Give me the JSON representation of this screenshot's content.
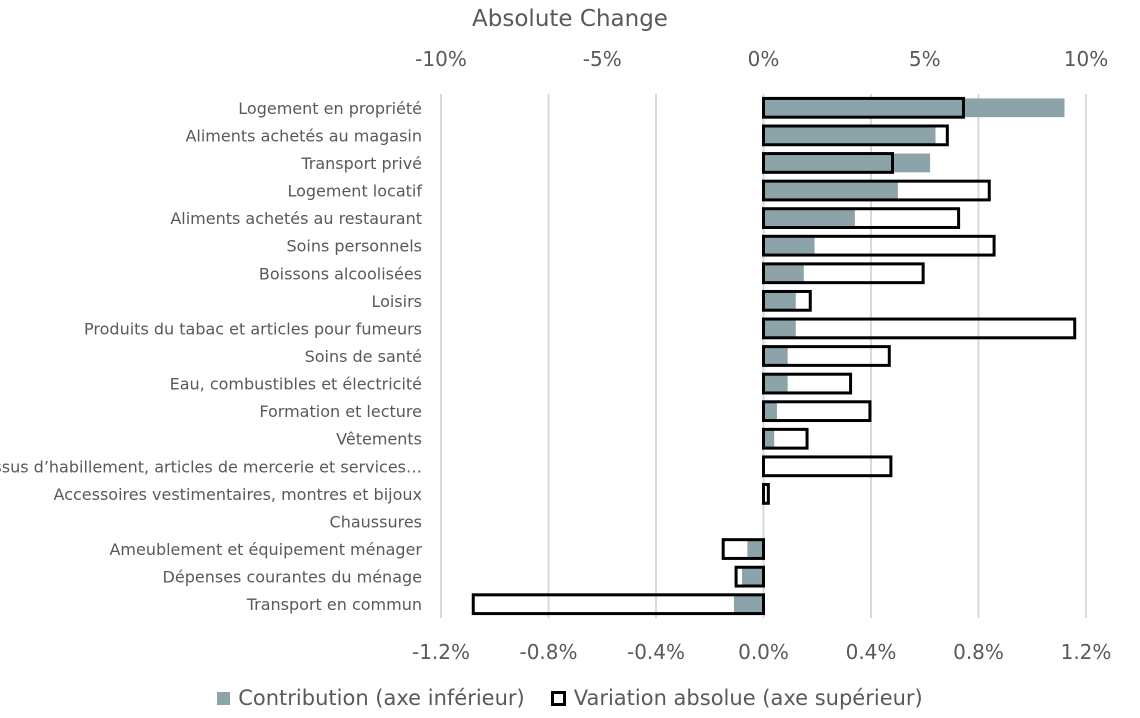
{
  "chart_data": {
    "type": "bar",
    "orientation": "horizontal",
    "title": "Absolute Change",
    "categories": [
      "Logement en propriété",
      "Aliments achetés au magasin",
      "Transport privé",
      "Logement locatif",
      "Aliments achetés au restaurant",
      "Soins personnels",
      "Boissons alcoolisées",
      "Loisirs",
      "Produits du tabac et articles pour fumeurs",
      "Soins de santé",
      "Eau, combustibles et électricité",
      "Formation et lecture",
      "Vêtements",
      "Tissus d’habillement, articles de mercerie et services…",
      "Accessoires vestimentaires, montres et bijoux",
      "Chaussures",
      "Ameublement et équipement ménager",
      "Dépenses courantes du ménage",
      "Transport en commun"
    ],
    "series": [
      {
        "name": "Contribution (axe inférieur)",
        "axis": "bottom",
        "color": "#8ca3a9",
        "style": "filled",
        "values": [
          1.12,
          0.64,
          0.62,
          0.5,
          0.34,
          0.19,
          0.15,
          0.12,
          0.12,
          0.09,
          0.09,
          0.05,
          0.04,
          0.0,
          0.0,
          0.0,
          -0.06,
          -0.08,
          -0.11
        ]
      },
      {
        "name": "Variation absolue (axe supérieur)",
        "axis": "top",
        "color": "#000000",
        "style": "outline",
        "values": [
          6.2,
          5.7,
          4.0,
          7.0,
          6.05,
          7.15,
          4.95,
          1.45,
          9.65,
          3.9,
          2.7,
          3.3,
          1.35,
          3.95,
          0.15,
          0.0,
          -1.25,
          -0.85,
          -9.0
        ]
      }
    ],
    "xaxis_top": {
      "label": "Absolute Change",
      "range": [
        -10,
        10
      ],
      "ticks": [
        -10,
        -5,
        0,
        5,
        10
      ],
      "tick_labels": [
        "-10%",
        "-5%",
        "0%",
        "5%",
        "10%"
      ]
    },
    "xaxis_bottom": {
      "range": [
        -1.2,
        1.2
      ],
      "ticks": [
        -1.2,
        -0.8,
        -0.4,
        0.0,
        0.4,
        0.8,
        1.2
      ],
      "tick_labels": [
        "-1.2%",
        "-0.8%",
        "-0.4%",
        "0.0%",
        "0.4%",
        "0.8%",
        "1.2%"
      ]
    },
    "grid": true,
    "legend_position": "bottom"
  }
}
